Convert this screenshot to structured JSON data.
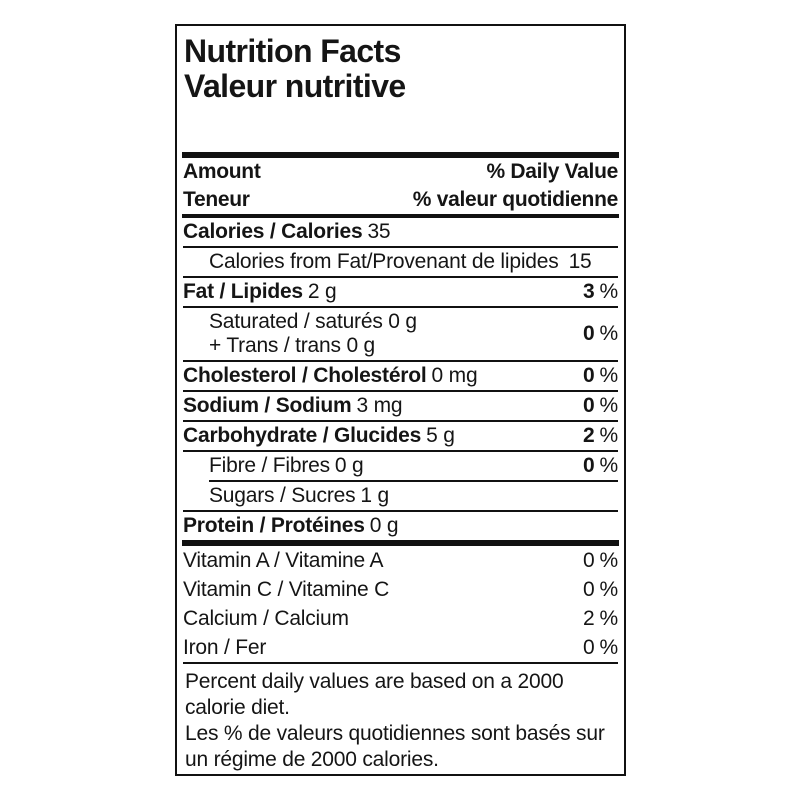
{
  "label": {
    "title_en": "Nutrition Facts",
    "title_fr": "Valeur nutritive",
    "header": {
      "amount_en": "Amount",
      "daily_value_en": "% Daily Value",
      "amount_fr": "Teneur",
      "daily_value_fr": "% valeur quotidienne"
    },
    "percent_symbol": "%",
    "rows": [
      {
        "id": "calories",
        "label": "Calories / Calories",
        "value": "35",
        "bold": true,
        "indent": false,
        "sep": "none",
        "dv": null
      },
      {
        "id": "calories-from-fat",
        "label": "Calories from Fat/Provenant de lipides",
        "value": "15",
        "bold": false,
        "indent": true,
        "sep": "full",
        "dv": null,
        "value_gap": true
      },
      {
        "id": "fat",
        "label": "Fat / Lipides",
        "value": "2 g",
        "bold": true,
        "indent": false,
        "sep": "full",
        "dv": "3"
      },
      {
        "id": "saturated-trans",
        "lines": [
          "Saturated / saturés 0 g",
          "+ Trans / trans 0 g"
        ],
        "bold": false,
        "indent": true,
        "sep": "full",
        "dv": "0"
      },
      {
        "id": "cholesterol",
        "label": "Cholesterol / Cholestérol",
        "value": "0 mg",
        "bold": true,
        "indent": false,
        "sep": "full",
        "dv": "0"
      },
      {
        "id": "sodium",
        "label": "Sodium / Sodium",
        "value": "3 mg",
        "bold": true,
        "indent": false,
        "sep": "full",
        "dv": "0"
      },
      {
        "id": "carbohydrate",
        "label": "Carbohydrate / Glucides",
        "value": "5 g",
        "bold": true,
        "indent": false,
        "sep": "full",
        "dv": "2"
      },
      {
        "id": "fibre",
        "label": "Fibre / Fibres",
        "value": "0 g",
        "bold": false,
        "indent": true,
        "sep": "full",
        "dv": "0"
      },
      {
        "id": "sugars",
        "label": "Sugars / Sucres",
        "value": "1 g",
        "bold": false,
        "indent": true,
        "sep": "indent",
        "dv": null
      },
      {
        "id": "protein",
        "label": "Protein / Protéines",
        "value": "0 g",
        "bold": true,
        "indent": false,
        "sep": "full",
        "dv": null
      }
    ],
    "micronutrients": [
      {
        "id": "vitamin-a",
        "label": "Vitamin A / Vitamine A",
        "dv": "0"
      },
      {
        "id": "vitamin-c",
        "label": "Vitamin C / Vitamine C",
        "dv": "0"
      },
      {
        "id": "calcium",
        "label": "Calcium / Calcium",
        "dv": "2"
      },
      {
        "id": "iron",
        "label": "Iron / Fer",
        "dv": "0"
      }
    ],
    "footnote_lines": [
      "Percent daily values are based on a 2000",
      "calorie diet.",
      "Les % de valeurs quotidiennes sont basés sur",
      "un régime de 2000 calories."
    ],
    "colors": {
      "text": "#151515",
      "border": "#111111",
      "background": "#ffffff"
    }
  }
}
